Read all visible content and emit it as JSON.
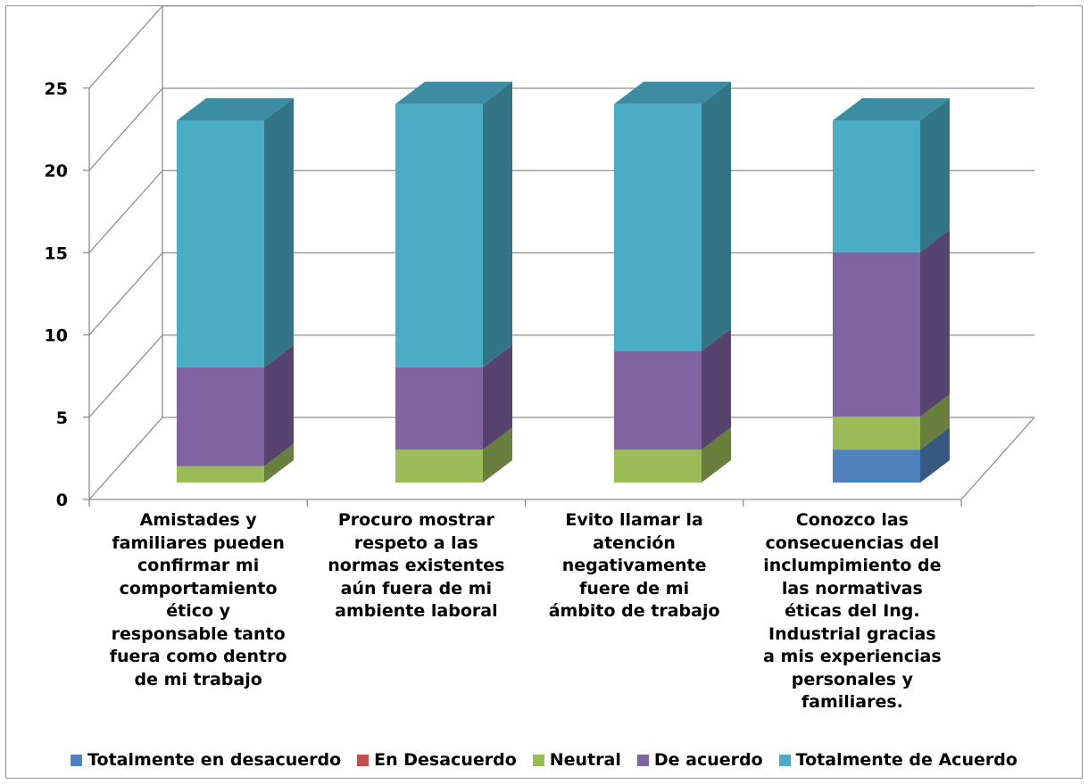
{
  "chart_data": {
    "type": "bar",
    "stacked": true,
    "three_d": true,
    "title": "",
    "xlabel": "",
    "ylabel": "",
    "ylim": [
      0,
      25
    ],
    "yticks": [
      "0",
      "5",
      "10",
      "15",
      "20",
      "25"
    ],
    "grid": true,
    "legend_position": "bottom",
    "categories": [
      "Amistades y familiares pueden confirmar mi comportamiento ético y responsable tanto fuera como dentro de mi trabajo",
      "Procuro mostrar respeto a las normas existentes aún fuera de mi ambiente laboral",
      "Evito llamar la atención negativamente fuere de mi ámbito de trabajo",
      "Conozco las consecuencias del inclumpimiento de las normativas éticas del Ing. Industrial gracias a mis experiencias personales y familiares."
    ],
    "series": [
      {
        "name": "Totalmente en desacuerdo",
        "color": "#4F81BD",
        "values": [
          0,
          0,
          0,
          2
        ]
      },
      {
        "name": "En Desacuerdo",
        "color": "#C0504D",
        "values": [
          0,
          0,
          0,
          0
        ]
      },
      {
        "name": "Neutral",
        "color": "#9BBB59",
        "values": [
          1,
          2,
          2,
          2
        ]
      },
      {
        "name": "De acuerdo",
        "color": "#8064A2",
        "values": [
          6,
          5,
          6,
          10
        ]
      },
      {
        "name": "Totalmente de Acuerdo",
        "color": "#4BACC6",
        "values": [
          15,
          16,
          15,
          8
        ]
      }
    ]
  }
}
